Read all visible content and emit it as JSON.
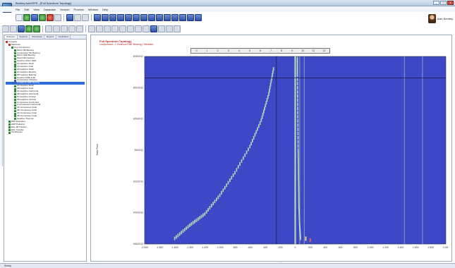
{
  "window": {
    "title": "Bentley AutoPIPE - [Full Spectrum Topology]",
    "caption_buttons": [
      "_",
      "□",
      "X"
    ]
  },
  "menu": [
    "File",
    "Edit",
    "View",
    "Database",
    "Version",
    "Process",
    "Window",
    "Help"
  ],
  "user": {
    "name": "Alan Bentley"
  },
  "left_panel": {
    "tabs": [
      "Networks",
      "Systems",
      "Workspace",
      "Reports",
      "Notification"
    ],
    "active_tab": 0,
    "tree": [
      {
        "label": "Compare",
        "indent": 0,
        "color": "red"
      },
      {
        "label": "Machines",
        "indent": 1,
        "color": "red"
      },
      {
        "label": "Line Compressor",
        "indent": 2,
        "color": "green"
      },
      {
        "label": "Motor DE Bearing",
        "indent": 3,
        "color": "green"
      },
      {
        "label": "Compressor ND Bearing",
        "indent": 3,
        "color": "green"
      },
      {
        "label": "Motor NDE Bearing",
        "indent": 3,
        "color": "green"
      },
      {
        "label": "Motor DE Gearbox",
        "indent": 3,
        "color": "green"
      },
      {
        "label": "Gearbox Motor NDE",
        "indent": 3,
        "color": "green"
      },
      {
        "label": "1A Gearbox Shaft",
        "indent": 3,
        "color": "green"
      },
      {
        "label": "1A Gearbox Axial",
        "indent": 3,
        "color": "green"
      },
      {
        "label": "1B Gearbox Shaft",
        "indent": 3,
        "color": "green"
      },
      {
        "label": "2A Gearbox Bearing",
        "indent": 3,
        "color": "green"
      },
      {
        "label": "2B Gearbox Bearing",
        "indent": 3,
        "color": "green"
      },
      {
        "label": "Gearbox DNE Axial",
        "indent": 3,
        "color": "green"
      },
      {
        "label": "Compressor Vibration",
        "indent": 3,
        "color": "blue"
      },
      {
        "label": "2 Gearbox DNE Bearing",
        "indent": 3,
        "color": "blue",
        "selected": true
      },
      {
        "label": "3A Gearbox Shaft",
        "indent": 3,
        "color": "green"
      },
      {
        "label": "3B Gearbox Axial",
        "indent": 3,
        "color": "green"
      },
      {
        "label": "4A Gearbox Horizontal",
        "indent": 3,
        "color": "green"
      },
      {
        "label": "4B Gearbox Horizontal",
        "indent": 3,
        "color": "green"
      },
      {
        "label": "5A Gearbox Vertical",
        "indent": 3,
        "color": "green"
      },
      {
        "label": "5B Gearbox Vertical",
        "indent": 3,
        "color": "green"
      },
      {
        "label": "Compressor Horizontal",
        "indent": 3,
        "color": "green"
      },
      {
        "label": "2 Compressor Horizontal",
        "indent": 3,
        "color": "green"
      },
      {
        "label": "3A Compressor Axial",
        "indent": 3,
        "color": "green"
      },
      {
        "label": "3B Compressor Axial",
        "indent": 3,
        "color": "green"
      },
      {
        "label": "4A Compressor Axial",
        "indent": 3,
        "color": "green"
      },
      {
        "label": "4B Compressor Axial",
        "indent": 3,
        "color": "green"
      },
      {
        "label": "Gearbox Thermal",
        "indent": 3,
        "color": "green"
      },
      {
        "label": "DDP Extruders",
        "indent": 1,
        "color": "green"
      },
      {
        "label": "HDP Pelletizer",
        "indent": 1,
        "color": "green"
      },
      {
        "label": "ECL-96 Transfer",
        "indent": 1,
        "color": "green"
      },
      {
        "label": "ECL Transfer",
        "indent": 1,
        "color": "green"
      },
      {
        "label": "Timeframes",
        "indent": 1,
        "color": "green"
      }
    ]
  },
  "document": {
    "title": "Full Spectrum Topology",
    "subtitle": "Compressor / 2 Gearbox DNE Bearing / Vibration",
    "ylabel": "Date/Time",
    "xunit": "Hz",
    "colorbar_ticks": [
      "0",
      "1",
      "2",
      "3",
      "4",
      "5",
      "6",
      "7",
      "8",
      "9",
      "10",
      "11",
      "12"
    ]
  },
  "status": {
    "text": "Ready"
  },
  "chart_data": {
    "type": "heatmap",
    "xlabel": "Hz",
    "ylabel": "Date/Time",
    "xlim": [
      -2000,
      2000
    ],
    "x_ticks": [
      "-2,000",
      "-1,800",
      "-1,600",
      "-1,400",
      "-1,200",
      "-1,000",
      "-800",
      "-600",
      "-400",
      "-200",
      "0",
      "200",
      "400",
      "600",
      "800",
      "1,000",
      "1,200",
      "1,400",
      "1,600",
      "1,800",
      "2,000"
    ],
    "y_ticks": [
      "8/15/2012 12:00 AM",
      "8/22/2012 12:00 AM",
      "8/29/2012 12:00 AM",
      "9/5/2012 12:00 AM",
      "9/12/2012 12:00 AM",
      "9/19/2012 12:00 AM",
      "9/26/2012 12:00 AM"
    ],
    "cursor": {
      "x": -250,
      "y_index": 1
    },
    "background": "#3e47c6",
    "colors": {
      "mark": "#b9ddb3",
      "warm": "#e6d28a",
      "hot": "#d66a52"
    },
    "steady_peaks_hz": [
      0,
      60,
      120,
      1450,
      1690
    ],
    "drifting_peak": {
      "sweeps": [
        {
          "name": "negative",
          "points": [
            [
              -1600,
              0.97
            ],
            [
              -1400,
              0.9
            ],
            [
              -1200,
              0.84
            ],
            [
              -1000,
              0.74
            ],
            [
              -800,
              0.62
            ],
            [
              -600,
              0.48
            ],
            [
              -450,
              0.34
            ],
            [
              -350,
              0.2
            ],
            [
              -280,
              0.05
            ]
          ]
        },
        {
          "name": "positive",
          "points": [
            [
              70,
              0.97
            ],
            [
              60,
              0.9
            ],
            [
              50,
              0.8
            ],
            [
              45,
              0.65
            ],
            [
              40,
              0.5
            ],
            [
              35,
              0.3
            ],
            [
              30,
              0.1
            ],
            [
              30,
              0.0
            ]
          ]
        }
      ]
    }
  }
}
